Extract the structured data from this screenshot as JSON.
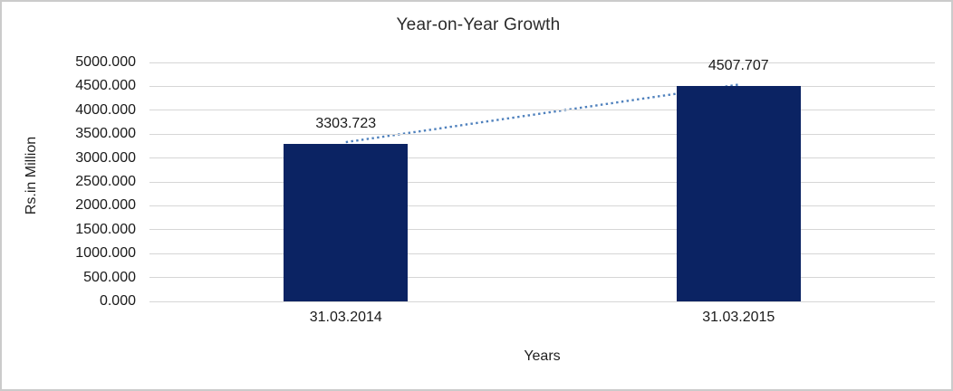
{
  "chart_data": {
    "type": "bar",
    "title": "Year-on-Year Growth",
    "categories": [
      "31.03.2014",
      "31.03.2015"
    ],
    "values": [
      3303.723,
      4507.707
    ],
    "data_labels": [
      "3303.723",
      "4507.707"
    ],
    "xlabel": "Years",
    "ylabel": "Rs.in Million",
    "ylim": [
      0,
      5000
    ],
    "ytick_step": 500,
    "ytick_labels": [
      "0.000",
      "500.000",
      "1000.000",
      "1500.000",
      "2000.000",
      "2500.000",
      "3000.000",
      "3500.000",
      "4000.000",
      "4500.000",
      "5000.000"
    ],
    "grid": "horizontal",
    "legend": "none",
    "trendline": {
      "type": "linear-dotted",
      "connects": "bar-top-centers",
      "color": "#4f81bd"
    },
    "colors": {
      "bar": "#0b2363",
      "trendline": "#4f81bd",
      "gridline": "#d6d6d6",
      "text": "#1a1a1a",
      "frame_border": "#cbcbcb",
      "background": "#ffffff"
    }
  }
}
